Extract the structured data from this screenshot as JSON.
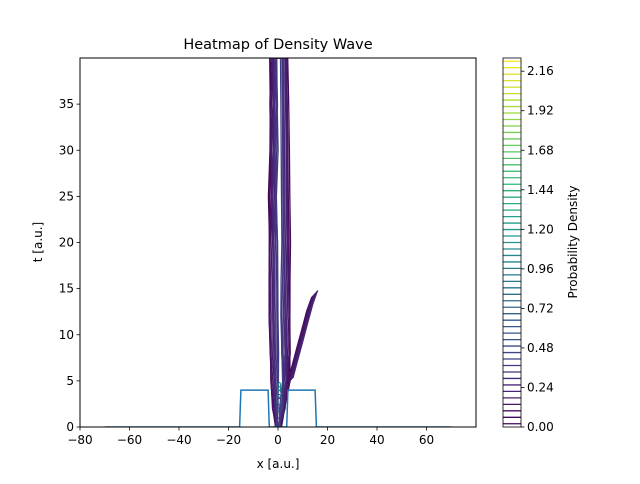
{
  "chart_data": {
    "type": "heatmap",
    "title": "Heatmap of Density Wave",
    "xlabel": "x [a.u.]",
    "ylabel": "t [a.u.]",
    "xlim": [
      -80,
      80
    ],
    "ylim": [
      0,
      40
    ],
    "xticks": [
      -80,
      -60,
      -40,
      -20,
      0,
      20,
      40,
      60
    ],
    "yticks": [
      0,
      5,
      10,
      15,
      20,
      25,
      30,
      35
    ],
    "colorbar": {
      "label": "Probability Density",
      "min": 0.0,
      "max": 2.24,
      "colormap": "viridis",
      "ticks": [
        "0.00",
        "0.24",
        "0.48",
        "0.72",
        "0.96",
        "1.20",
        "1.44",
        "1.68",
        "1.92",
        "2.16"
      ],
      "level_count": 57
    },
    "potential": {
      "color": "#1f77b4",
      "x": [
        -70,
        -15.5,
        -15,
        -4,
        -3.5,
        3.5,
        4,
        15,
        15.5,
        70
      ],
      "y": [
        0,
        0,
        4,
        4,
        0,
        0,
        4,
        4,
        0,
        0
      ]
    },
    "density_contours": {
      "description_levels": "dense low-level contours",
      "main_band": {
        "t": [
          0,
          2,
          5,
          8,
          12,
          16,
          20,
          25,
          30,
          35,
          40
        ],
        "x_left": [
          -1,
          -2,
          -3,
          -3.5,
          -4,
          -3.8,
          -3.6,
          -3.5,
          -3.5,
          -3.2,
          -3
        ],
        "x_right": [
          1,
          3,
          4.5,
          5,
          5.2,
          5,
          4.8,
          4.6,
          4.5,
          4.3,
          4
        ]
      },
      "reflected_branch": {
        "t": [
          5,
          7,
          9,
          11,
          13,
          14.5
        ],
        "x": [
          5,
          7,
          9,
          11,
          13,
          15
        ]
      }
    }
  }
}
